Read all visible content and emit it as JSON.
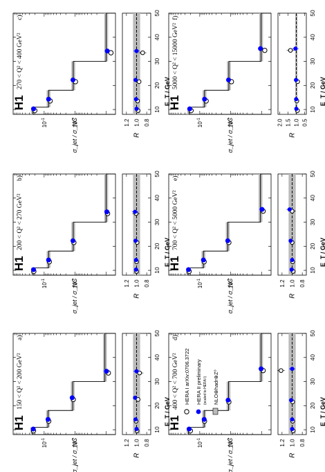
{
  "figure": {
    "collaboration": "H1",
    "y_main_label": "σ_jet / σ_NC",
    "y_ratio_label": "R",
    "x_label": "E_T / GeV",
    "x_ticks": [
      "10",
      "20",
      "30",
      "40",
      "50"
    ],
    "main_ticks": [
      "10^-1",
      "10^-2"
    ],
    "ratio_ticks_a": [
      "0.8",
      "1.0",
      "1.2"
    ],
    "ratio_ticks_f": [
      "0.5",
      "1.0",
      "1.5",
      "2.0"
    ]
  },
  "legend": {
    "items": [
      {
        "label": "HERA I arXiv:0706.3722",
        "marker": "open-circle"
      },
      {
        "label": "HERA II preliminary",
        "marker": "filled-circle"
      },
      {
        "label": "NLO⊗hadr⊗Z⁰",
        "marker": "shaded-band"
      }
    ],
    "sublabel": "(scaled to HERA I)"
  },
  "chart_data": [
    {
      "panel": "a)",
      "type": "line",
      "label": "150 < Q² < 200 GeV²",
      "x": [
        10,
        14,
        23,
        34
      ],
      "hera1": [
        0.22,
        0.071,
        0.0115,
        0.00085
      ],
      "hera2": [
        0.225,
        0.075,
        0.0125,
        0.00098
      ],
      "nlo_bins": [
        [
          8,
          11,
          0.24
        ],
        [
          11,
          18,
          0.075
        ],
        [
          18,
          30,
          0.012
        ],
        [
          30,
          50,
          0.0011
        ]
      ],
      "ratio_hera1": [
        0.99,
        1.01,
        0.97,
        0.94
      ],
      "ratio_hera2": [
        1.0,
        1.02,
        1.03,
        1.0
      ]
    },
    {
      "panel": "b)",
      "type": "line",
      "label": "200 < Q² < 270 GeV²",
      "x": [
        10,
        14,
        22,
        34
      ],
      "hera1": [
        0.215,
        0.068,
        0.011,
        0.0009
      ],
      "hera2": [
        0.22,
        0.072,
        0.0118,
        0.00095
      ],
      "nlo_bins": [
        [
          8,
          11,
          0.23
        ],
        [
          11,
          18,
          0.072
        ],
        [
          18,
          30,
          0.0115
        ],
        [
          30,
          50,
          0.001
        ]
      ],
      "ratio_hera1": [
        1.0,
        1.0,
        0.99,
        1.01
      ],
      "ratio_hera2": [
        1.01,
        1.01,
        1.02,
        1.03
      ]
    },
    {
      "panel": "c)",
      "type": "line",
      "label": "270 < Q² < 400 GeV²",
      "x": [
        10,
        14,
        22,
        34
      ],
      "hera1": [
        0.2,
        0.064,
        0.0098,
        0.0007
      ],
      "hera2": [
        0.22,
        0.072,
        0.0118,
        0.00092
      ],
      "nlo_bins": [
        [
          8,
          11,
          0.23
        ],
        [
          11,
          18,
          0.072
        ],
        [
          18,
          30,
          0.0115
        ],
        [
          30,
          50,
          0.001
        ]
      ],
      "ratio_hera1": [
        0.97,
        0.98,
        0.95,
        0.88
      ],
      "ratio_hera2": [
        1.0,
        1.01,
        1.02,
        1.0
      ]
    },
    {
      "panel": "d)",
      "type": "line",
      "label": "400 < Q² < 700 GeV²",
      "x": [
        10,
        14,
        22,
        35
      ],
      "hera1": [
        0.2,
        0.07,
        0.0115,
        0.0009
      ],
      "hera2": [
        0.22,
        0.072,
        0.0122,
        0.00105
      ],
      "nlo_bins": [
        [
          8,
          11,
          0.23
        ],
        [
          11,
          18,
          0.072
        ],
        [
          18,
          30,
          0.0118
        ],
        [
          30,
          50,
          0.00105
        ]
      ],
      "ratio_hera1": [
        0.98,
        0.99,
        0.99,
        1.22
      ],
      "ratio_hera2": [
        1.0,
        1.0,
        1.02,
        1.0
      ]
    },
    {
      "panel": "e)",
      "type": "line",
      "label": "700 < Q² < 5000 GeV²",
      "x": [
        10,
        14,
        22,
        35
      ],
      "hera1": [
        0.22,
        0.072,
        0.0115,
        0.0009
      ],
      "hera2": [
        0.23,
        0.076,
        0.0125,
        0.00098
      ],
      "nlo_bins": [
        [
          8,
          11,
          0.24
        ],
        [
          11,
          18,
          0.076
        ],
        [
          18,
          30,
          0.0125
        ],
        [
          30,
          50,
          0.0011
        ]
      ],
      "ratio_hera1": [
        0.98,
        0.99,
        1.0,
        1.0
      ],
      "ratio_hera2": [
        1.01,
        1.0,
        1.03,
        1.05
      ]
    },
    {
      "panel": "f)",
      "type": "line",
      "label": "5000 < Q² < 15000 GeV²",
      "x": [
        10,
        14,
        22,
        35
      ],
      "hera1": [
        0.19,
        0.062,
        0.0095,
        0.0008
      ],
      "hera2": [
        0.21,
        0.07,
        0.0118,
        0.0011
      ],
      "nlo_bins": [
        [
          8,
          11,
          0.22
        ],
        [
          11,
          18,
          0.07
        ],
        [
          18,
          30,
          0.0115
        ],
        [
          30,
          50,
          0.00105
        ]
      ],
      "ratio_hera1": [
        0.93,
        0.97,
        0.92,
        1.35
      ],
      "ratio_hera2": [
        1.0,
        1.01,
        1.02,
        1.05
      ]
    }
  ]
}
